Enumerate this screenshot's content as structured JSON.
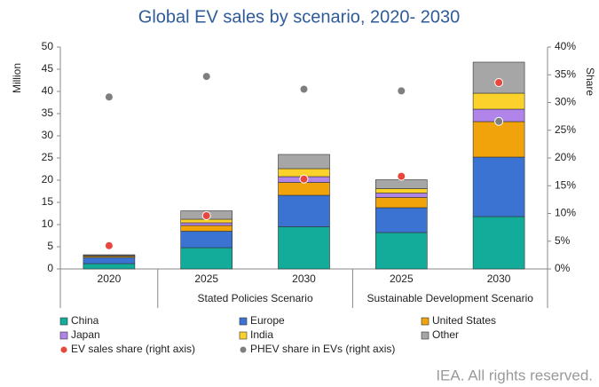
{
  "chart_data": {
    "type": "stacked_bar",
    "title": "Global EV sales by scenario, 2020- 2030",
    "ylabel": "Million",
    "y2label": "Share",
    "categories": [
      "2020",
      "2025",
      "2030",
      "2025",
      "2030"
    ],
    "category_groups": [
      null,
      "Stated Policies Scenario",
      "Stated Policies Scenario",
      "Sustainable Development Scenario",
      "Sustainable Development Scenario"
    ],
    "ylim": [
      0,
      50
    ],
    "yticks": [
      0,
      5,
      10,
      15,
      20,
      25,
      30,
      35,
      40,
      45,
      50
    ],
    "y2lim": [
      0,
      40
    ],
    "y2ticks": [
      {
        "value": 0,
        "label": "0%"
      },
      {
        "value": 5,
        "label": "5%"
      },
      {
        "value": 10,
        "label": "10%"
      },
      {
        "value": 15,
        "label": "15%"
      },
      {
        "value": 20,
        "label": "20%"
      },
      {
        "value": 25,
        "label": "25%"
      },
      {
        "value": 30,
        "label": "30%"
      },
      {
        "value": 35,
        "label": "35%"
      },
      {
        "value": 40,
        "label": "40%"
      }
    ],
    "series": [
      {
        "name": "China",
        "color": "#13ac9b",
        "values": [
          1.2,
          4.8,
          9.5,
          8.2,
          11.8
        ]
      },
      {
        "name": "Europe",
        "color": "#3a73d1",
        "values": [
          1.4,
          3.7,
          7.1,
          5.6,
          13.4
        ]
      },
      {
        "name": "United States",
        "color": "#f0a30a",
        "values": [
          0.3,
          1.3,
          2.9,
          2.3,
          8.0
        ]
      },
      {
        "name": "Japan",
        "color": "#b084e8",
        "values": [
          0.05,
          0.6,
          1.3,
          1.0,
          2.8
        ]
      },
      {
        "name": "India",
        "color": "#fbd12b",
        "values": [
          0.05,
          0.8,
          1.8,
          1.0,
          3.6
        ]
      },
      {
        "name": "Other",
        "color": "#a6a6a6",
        "values": [
          0.2,
          1.9,
          3.2,
          2.0,
          7.0
        ]
      },
      {
        "name": "EV sales share (right axis)",
        "color": "#e8473d",
        "mark": "dot",
        "axis": "y2",
        "values": [
          4.2,
          9.6,
          16.2,
          16.7,
          33.6
        ]
      },
      {
        "name": "PHEV share in EVs (right axis)",
        "color": "#7f7f7f",
        "mark": "dot",
        "axis": "y2",
        "values": [
          31.0,
          34.7,
          32.4,
          32.1,
          26.6
        ]
      }
    ],
    "footer": "IEA. All rights reserved."
  }
}
